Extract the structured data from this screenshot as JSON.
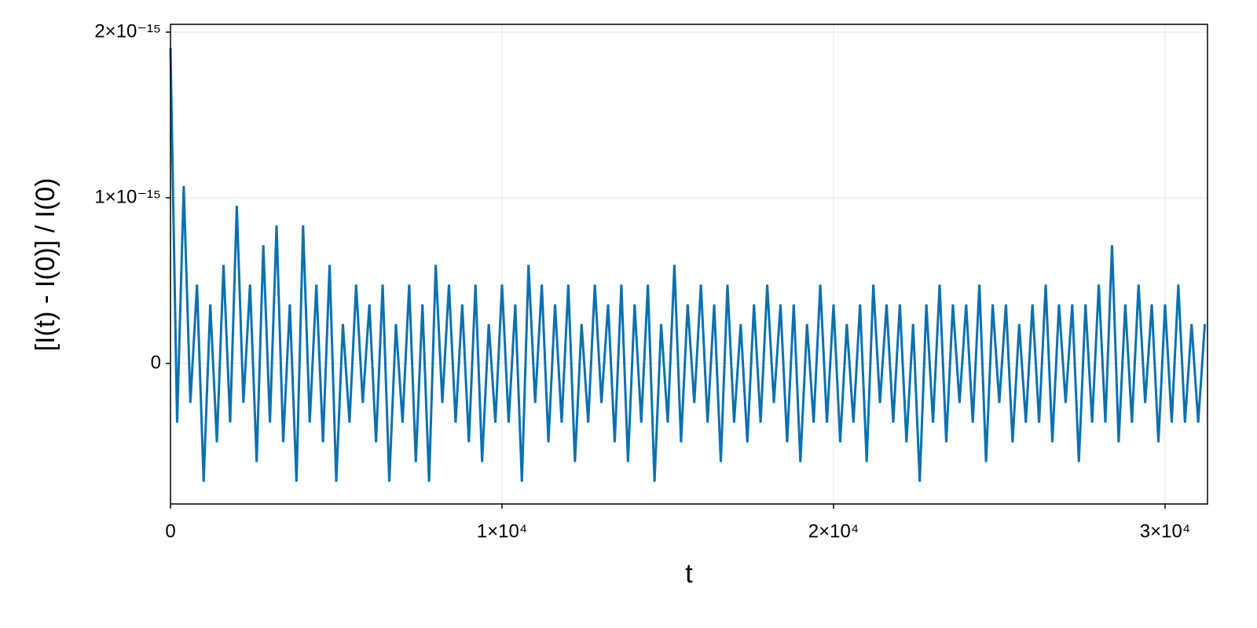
{
  "chart_data": {
    "type": "line",
    "xlabel": "t",
    "ylabel": "[I(t) - I(0)] / I(0)",
    "color": "#0a71b1",
    "grid": true,
    "xlim": [
      0,
      31280
    ],
    "ylim": [
      -8.48e-16,
      2.047e-15
    ],
    "xticks": [
      0,
      {
        "value": 10000,
        "label": "1×10⁴"
      },
      {
        "value": 20000,
        "label": "2×10⁴"
      },
      {
        "value": 30000,
        "label": "3×10⁴"
      }
    ],
    "yticks": [
      0,
      {
        "value": 1e-15,
        "label": "1×10⁻¹⁵"
      },
      {
        "value": 2e-15,
        "label": "2×10⁻¹⁵"
      }
    ],
    "x": [
      0,
      200,
      400,
      600,
      800,
      1000,
      1200,
      1400,
      1600,
      1800,
      2000,
      2200,
      2400,
      2600,
      2800,
      3000,
      3200,
      3400,
      3600,
      3800,
      4000,
      4200,
      4400,
      4600,
      4800,
      5000,
      5200,
      5400,
      5600,
      5800,
      6000,
      6200,
      6400,
      6600,
      6800,
      7000,
      7200,
      7400,
      7600,
      7800,
      8000,
      8200,
      8400,
      8600,
      8800,
      9000,
      9200,
      9400,
      9600,
      9800,
      10000,
      10200,
      10400,
      10600,
      10800,
      11000,
      11200,
      11400,
      11600,
      11800,
      12000,
      12200,
      12400,
      12600,
      12800,
      13000,
      13200,
      13400,
      13600,
      13800,
      14000,
      14200,
      14400,
      14600,
      14800,
      15000,
      15200,
      15400,
      15600,
      15800,
      16000,
      16200,
      16400,
      16600,
      16800,
      17000,
      17200,
      17400,
      17600,
      17800,
      18000,
      18200,
      18400,
      18600,
      18800,
      19000,
      19200,
      19400,
      19600,
      19800,
      20000,
      20200,
      20400,
      20600,
      20800,
      21000,
      21200,
      21400,
      21600,
      21800,
      22000,
      22200,
      22400,
      22600,
      22800,
      23000,
      23200,
      23400,
      23600,
      23800,
      24000,
      24200,
      24400,
      24600,
      24800,
      25000,
      25200,
      25400,
      25600,
      25800,
      26000,
      26200,
      26400,
      26600,
      26800,
      27000,
      27200,
      27400,
      27600,
      27800,
      28000,
      28200,
      28400,
      28600,
      28800,
      29000,
      29200,
      29400,
      29600,
      29800,
      30000,
      30200,
      30400,
      30600,
      30800,
      31000,
      31200
    ],
    "values": [
      1.904e-15,
      -3.57e-16,
      1.071e-15,
      -2.38e-16,
      4.76e-16,
      -7.14e-16,
      3.57e-16,
      -4.76e-16,
      5.95e-16,
      -3.57e-16,
      9.52e-16,
      -2.38e-16,
      4.76e-16,
      -5.95e-16,
      7.14e-16,
      -3.57e-16,
      8.33e-16,
      -4.76e-16,
      3.57e-16,
      -7.14e-16,
      8.33e-16,
      -3.57e-16,
      4.76e-16,
      -4.76e-16,
      5.95e-16,
      -7.14e-16,
      2.38e-16,
      -3.57e-16,
      4.76e-16,
      -2.38e-16,
      3.57e-16,
      -4.76e-16,
      4.76e-16,
      -7.14e-16,
      2.38e-16,
      -3.57e-16,
      4.76e-16,
      -5.95e-16,
      3.57e-16,
      -7.14e-16,
      5.95e-16,
      -2.38e-16,
      4.76e-16,
      -3.57e-16,
      3.57e-16,
      -4.76e-16,
      4.76e-16,
      -5.95e-16,
      2.38e-16,
      -3.57e-16,
      4.76e-16,
      -3.57e-16,
      3.57e-16,
      -7.14e-16,
      5.95e-16,
      -2.38e-16,
      4.76e-16,
      -4.76e-16,
      3.57e-16,
      -3.57e-16,
      4.76e-16,
      -5.95e-16,
      2.38e-16,
      -3.57e-16,
      4.76e-16,
      -2.38e-16,
      3.57e-16,
      -4.76e-16,
      4.76e-16,
      -5.95e-16,
      3.57e-16,
      -3.57e-16,
      4.76e-16,
      -7.14e-16,
      2.38e-16,
      -3.57e-16,
      5.95e-16,
      -4.76e-16,
      3.57e-16,
      -2.38e-16,
      4.76e-16,
      -3.57e-16,
      3.57e-16,
      -5.95e-16,
      4.76e-16,
      -3.57e-16,
      2.38e-16,
      -4.76e-16,
      3.57e-16,
      -3.57e-16,
      4.76e-16,
      -2.38e-16,
      3.57e-16,
      -4.76e-16,
      3.57e-16,
      -5.95e-16,
      2.38e-16,
      -3.57e-16,
      4.76e-16,
      -3.57e-16,
      3.57e-16,
      -4.76e-16,
      2.38e-16,
      -3.57e-16,
      3.57e-16,
      -5.95e-16,
      4.76e-16,
      -2.38e-16,
      3.57e-16,
      -3.57e-16,
      3.57e-16,
      -4.76e-16,
      2.38e-16,
      -7.14e-16,
      3.57e-16,
      -3.57e-16,
      4.76e-16,
      -4.76e-16,
      3.57e-16,
      -2.38e-16,
      3.57e-16,
      -3.57e-16,
      4.76e-16,
      -5.95e-16,
      3.57e-16,
      -2.38e-16,
      3.57e-16,
      -4.76e-16,
      2.38e-16,
      -3.57e-16,
      3.57e-16,
      -3.57e-16,
      4.76e-16,
      -4.76e-16,
      3.57e-16,
      -2.38e-16,
      3.57e-16,
      -5.95e-16,
      3.57e-16,
      -3.57e-16,
      4.76e-16,
      -3.57e-16,
      7.14e-16,
      -4.76e-16,
      3.57e-16,
      -3.57e-16,
      4.76e-16,
      -2.38e-16,
      3.57e-16,
      -4.76e-16,
      3.57e-16,
      -3.57e-16,
      4.76e-16,
      -3.57e-16,
      2.38e-16,
      -3.57e-16,
      2.38e-16
    ]
  }
}
